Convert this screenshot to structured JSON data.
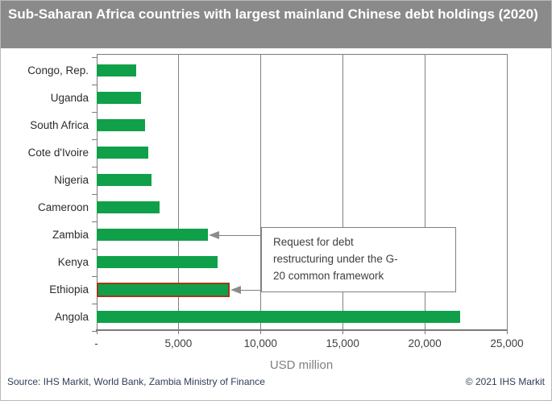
{
  "title": "Sub-Saharan Africa countries with largest mainland Chinese debt holdings (2020)",
  "chart_data": {
    "type": "bar",
    "orientation": "horizontal",
    "categories": [
      "Congo, Rep.",
      "Uganda",
      "South Africa",
      "Cote d'Ivoire",
      "Nigeria",
      "Cameroon",
      "Zambia",
      "Kenya",
      "Ethiopia",
      "Angola"
    ],
    "values": [
      2450,
      2700,
      2950,
      3150,
      3350,
      3850,
      6800,
      7400,
      8000,
      22150
    ],
    "title": "Sub-Saharan Africa countries with largest mainland Chinese debt holdings (2020)",
    "xlabel": "USD million",
    "ylabel": "",
    "xlim": [
      0,
      25000
    ],
    "xticks": [
      0,
      5000,
      10000,
      15000,
      20000,
      25000
    ],
    "xtick_labels": [
      "-",
      "5,000",
      "10,000",
      "15,000",
      "20,000",
      "25,000"
    ],
    "grid": true,
    "legend": false,
    "bar_color": "#10a04a",
    "highlighted_category": "Ethiopia",
    "highlight_outline_color": "#a0391b",
    "annotation": {
      "lines": [
        "Request for debt",
        "restructuring under the G-",
        "20 common framework"
      ],
      "points_to": [
        "Zambia",
        "Ethiopia"
      ]
    }
  },
  "footer": {
    "source": "Source: IHS Markit, World Bank, Zambia Ministry of Finance",
    "copyright": "© 2021 IHS Markit"
  },
  "colors": {
    "title_bg": "#8a8a8a",
    "title_text": "#ffffff",
    "bar": "#10a04a",
    "highlight_outline": "#a0391b",
    "grid": "#808080",
    "axis_text": "#3f3f3f",
    "axis_title_text": "#7f7f7f",
    "footer_text": "#2d3e55"
  }
}
